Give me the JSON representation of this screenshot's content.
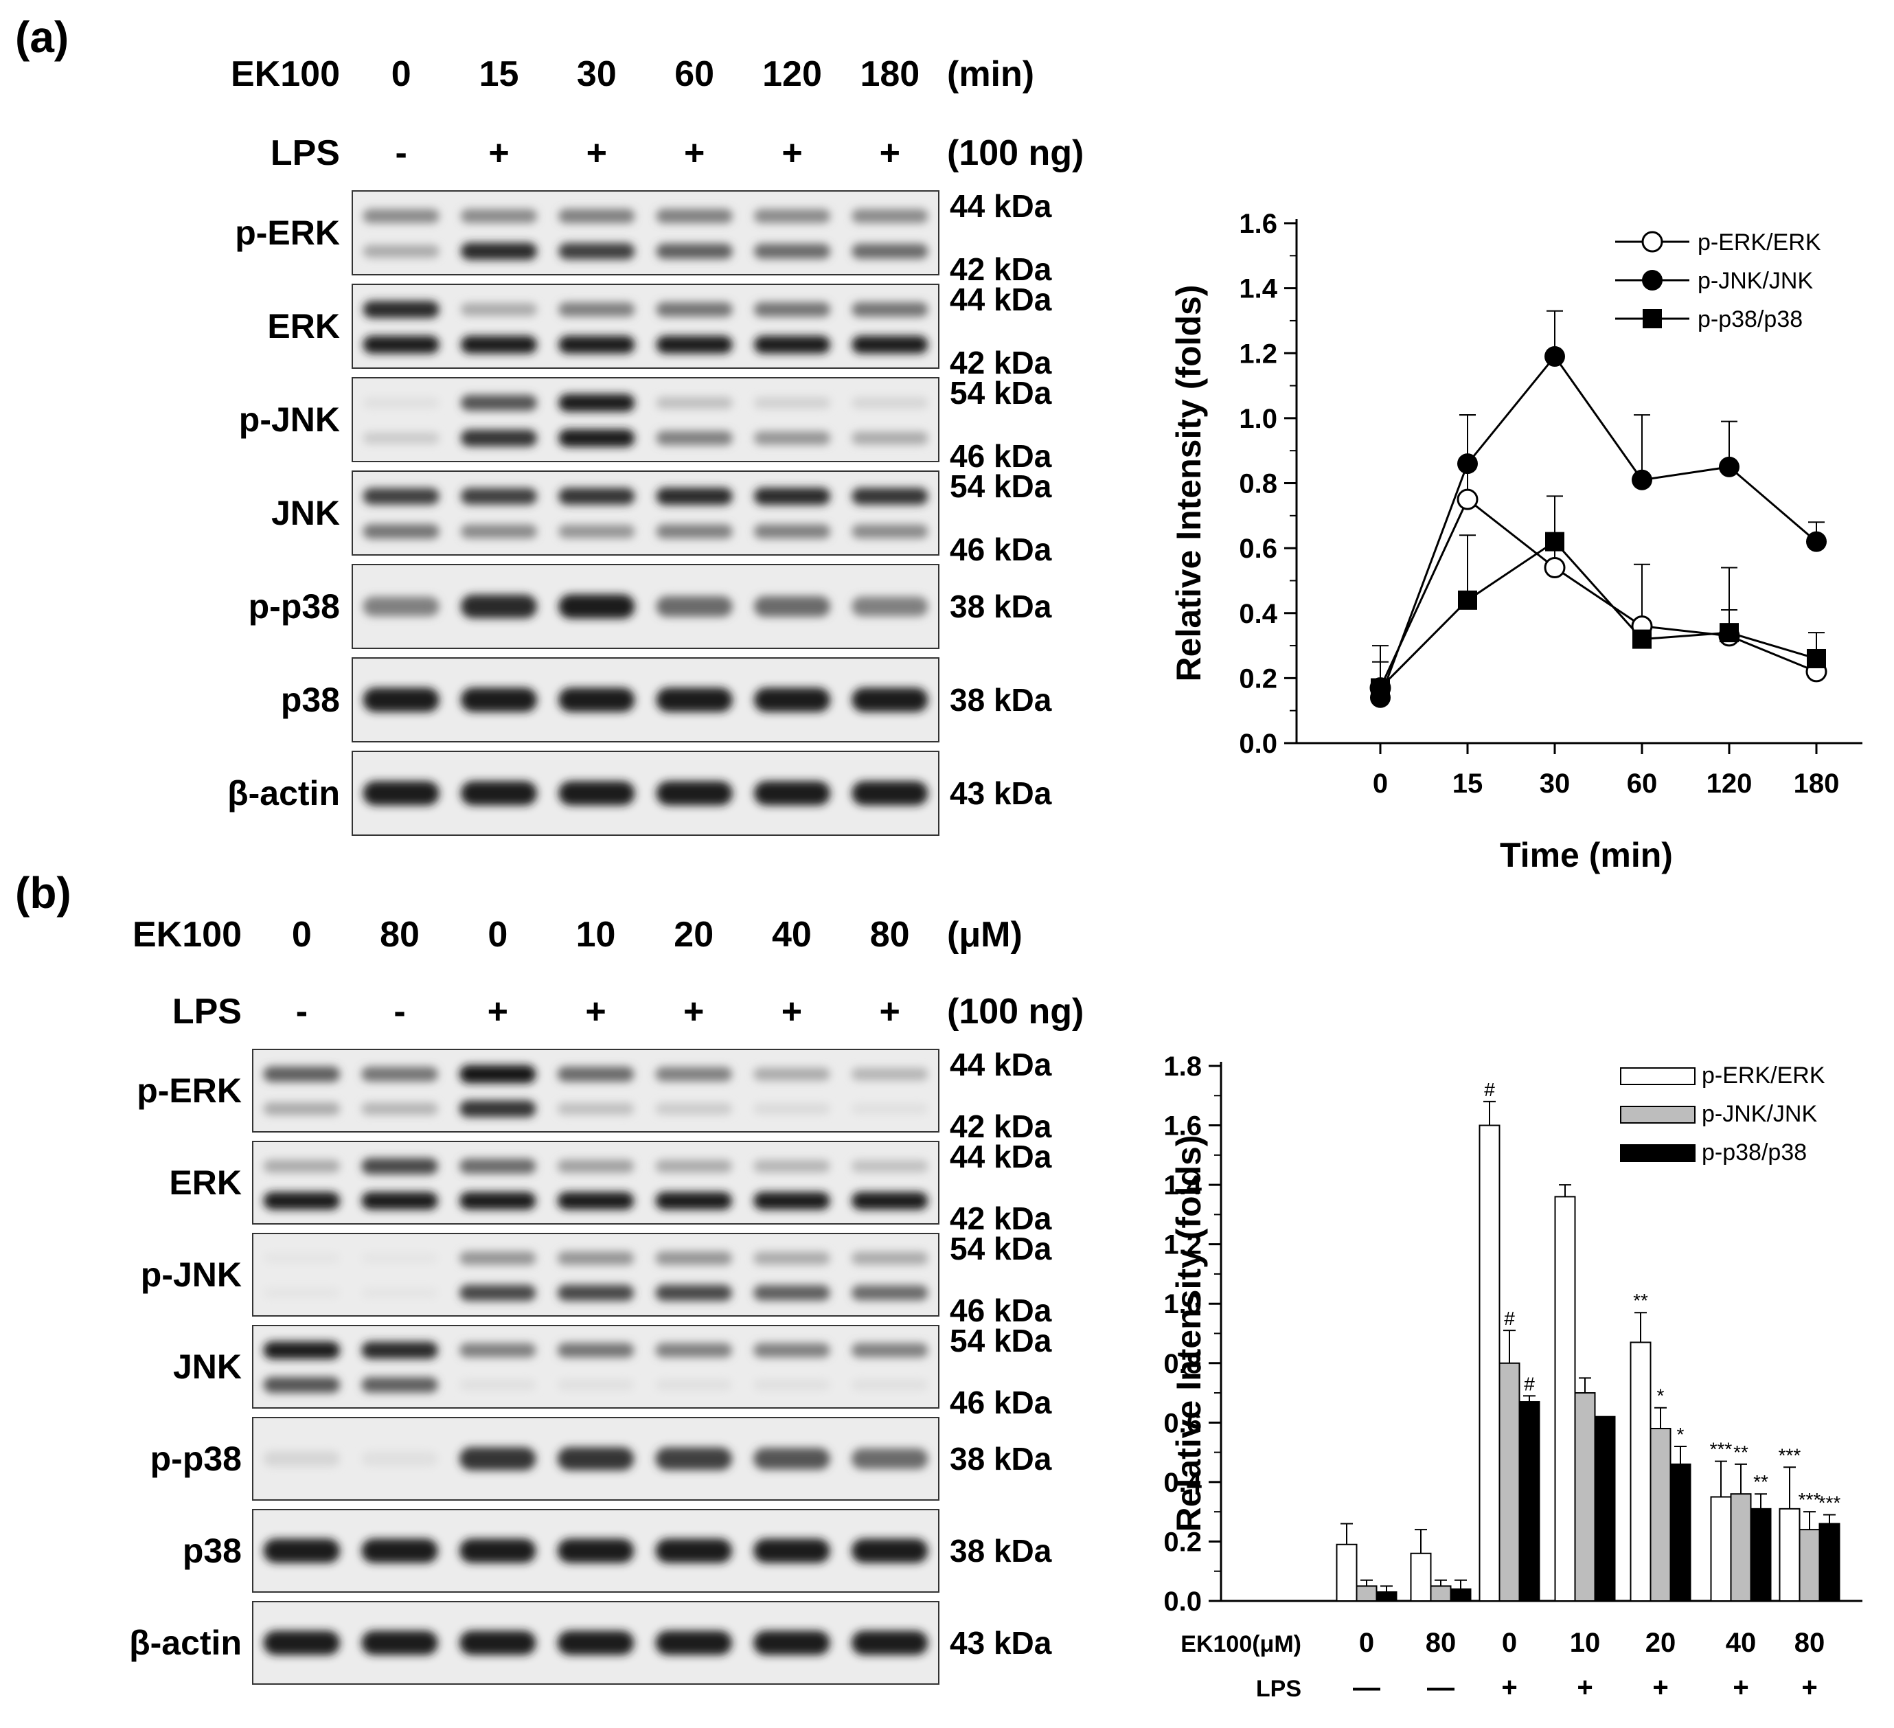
{
  "panel_a": {
    "label": "(a)",
    "blot": {
      "ek100_label": "EK100",
      "ek100_values": [
        "0",
        "15",
        "30",
        "60",
        "120",
        "180"
      ],
      "ek100_unit": "(min)",
      "lps_label": "LPS",
      "lps_values": [
        "-",
        "+",
        "+",
        "+",
        "+",
        "+"
      ],
      "lps_unit": "(100 ng)",
      "lps_intensity": [
        0,
        1,
        1,
        1,
        1,
        1
      ],
      "rows": [
        {
          "name": "p-ERK",
          "bands": [
            {
              "kda": "44 kDa",
              "i": [
                0.45,
                0.45,
                0.5,
                0.5,
                0.45,
                0.45
              ]
            },
            {
              "kda": "42 kDa",
              "i": [
                0.3,
                0.9,
                0.8,
                0.65,
                0.6,
                0.6
              ]
            }
          ]
        },
        {
          "name": "ERK",
          "bands": [
            {
              "kda": "44 kDa",
              "i": [
                0.9,
                0.3,
                0.5,
                0.55,
                0.55,
                0.55
              ]
            },
            {
              "kda": "42 kDa",
              "i": [
                0.95,
                0.95,
                0.95,
                0.95,
                0.95,
                0.95
              ]
            }
          ]
        },
        {
          "name": "p-JNK",
          "bands": [
            {
              "kda": "54 kDa",
              "i": [
                0.05,
                0.7,
                0.95,
                0.2,
                0.12,
                0.1
              ]
            },
            {
              "kda": "46 kDa",
              "i": [
                0.15,
                0.85,
                0.95,
                0.5,
                0.4,
                0.3
              ]
            }
          ]
        },
        {
          "name": "JNK",
          "bands": [
            {
              "kda": "54 kDa",
              "i": [
                0.8,
                0.8,
                0.85,
                0.9,
                0.9,
                0.85
              ]
            },
            {
              "kda": "46 kDa",
              "i": [
                0.55,
                0.45,
                0.4,
                0.5,
                0.5,
                0.45
              ]
            }
          ]
        },
        {
          "name": "p-p38",
          "bands": [
            {
              "kda": "38 kDa",
              "i": [
                0.5,
                0.9,
                0.95,
                0.6,
                0.6,
                0.5
              ]
            }
          ]
        },
        {
          "name": "p38",
          "bands": [
            {
              "kda": "38 kDa",
              "i": [
                0.95,
                0.95,
                0.95,
                0.95,
                0.95,
                0.95
              ]
            }
          ]
        },
        {
          "name": "β-actin",
          "bands": [
            {
              "kda": "43 kDa",
              "i": [
                0.95,
                0.95,
                0.95,
                0.95,
                0.95,
                0.95
              ]
            }
          ]
        }
      ]
    }
  },
  "panel_b": {
    "label": "(b)",
    "blot": {
      "ek100_label": "EK100",
      "ek100_values": [
        "0",
        "80",
        "0",
        "10",
        "20",
        "40",
        "80"
      ],
      "ek100_unit": "(μM)",
      "lps_label": "LPS",
      "lps_values": [
        "-",
        "-",
        "+",
        "+",
        "+",
        "+",
        "+"
      ],
      "lps_unit": "(100 ng)",
      "lps_intensity": [
        0,
        0,
        1,
        1,
        1,
        1,
        1
      ],
      "rows": [
        {
          "name": "p-ERK",
          "bands": [
            {
              "kda": "44 kDa",
              "i": [
                0.65,
                0.55,
                1.0,
                0.6,
                0.5,
                0.3,
                0.25
              ]
            },
            {
              "kda": "42 kDa",
              "i": [
                0.3,
                0.25,
                0.85,
                0.2,
                0.15,
                0.08,
                0.05
              ]
            }
          ]
        },
        {
          "name": "ERK",
          "bands": [
            {
              "kda": "44 kDa",
              "i": [
                0.3,
                0.75,
                0.6,
                0.35,
                0.3,
                0.25,
                0.2
              ]
            },
            {
              "kda": "42 kDa",
              "i": [
                0.95,
                0.95,
                0.95,
                0.95,
                0.95,
                0.95,
                0.95
              ]
            }
          ]
        },
        {
          "name": "p-JNK",
          "bands": [
            {
              "kda": "54 kDa",
              "i": [
                0.03,
                0.03,
                0.4,
                0.4,
                0.4,
                0.3,
                0.3
              ]
            },
            {
              "kda": "46 kDa",
              "i": [
                0.03,
                0.03,
                0.75,
                0.75,
                0.75,
                0.65,
                0.6
              ]
            }
          ]
        },
        {
          "name": "JNK",
          "bands": [
            {
              "kda": "54 kDa",
              "i": [
                0.95,
                0.9,
                0.5,
                0.55,
                0.5,
                0.5,
                0.5
              ]
            },
            {
              "kda": "46 kDa",
              "i": [
                0.7,
                0.65,
                0.05,
                0.05,
                0.05,
                0.05,
                0.05
              ]
            }
          ]
        },
        {
          "name": "p-p38",
          "bands": [
            {
              "kda": "38 kDa",
              "i": [
                0.1,
                0.05,
                0.85,
                0.85,
                0.8,
                0.7,
                0.6
              ]
            }
          ]
        },
        {
          "name": "p38",
          "bands": [
            {
              "kda": "38 kDa",
              "i": [
                0.95,
                0.95,
                0.95,
                0.95,
                0.95,
                0.95,
                0.95
              ]
            }
          ]
        },
        {
          "name": "β-actin",
          "bands": [
            {
              "kda": "43 kDa",
              "i": [
                0.95,
                0.95,
                0.95,
                0.95,
                0.95,
                0.95,
                0.95
              ]
            }
          ]
        }
      ]
    }
  },
  "chart_data": [
    {
      "type": "line",
      "x": [
        "0",
        "15",
        "30",
        "60",
        "120",
        "180"
      ],
      "xlabel": "Time (min)",
      "ylabel": "Relative Intensity (folds)",
      "ylim": [
        0,
        1.6
      ],
      "yticks": [
        "0.0",
        "0.2",
        "0.4",
        "0.6",
        "0.8",
        "1.0",
        "1.2",
        "1.4",
        "1.6"
      ],
      "grid": false,
      "legend_position": "top-right",
      "series": [
        {
          "name": "p-ERK/ERK",
          "marker": "open-circle",
          "values": [
            0.17,
            0.75,
            0.54,
            0.36,
            0.33,
            0.22
          ],
          "errors": [
            0.13,
            0.26,
            0.07,
            0.19,
            0.08,
            0.06
          ]
        },
        {
          "name": "p-JNK/JNK",
          "marker": "filled-circle",
          "values": [
            0.14,
            0.86,
            1.19,
            0.81,
            0.85,
            0.62
          ],
          "errors": [
            0.03,
            0.15,
            0.14,
            0.2,
            0.14,
            0.06
          ]
        },
        {
          "name": "p-p38/p38",
          "marker": "filled-square",
          "values": [
            0.17,
            0.44,
            0.62,
            0.32,
            0.34,
            0.26
          ],
          "errors": [
            0.08,
            0.2,
            0.14,
            0.03,
            0.2,
            0.08
          ]
        }
      ]
    },
    {
      "type": "bar",
      "categories": [
        "0",
        "80",
        "0",
        "10",
        "20",
        "40",
        "80"
      ],
      "xlabel": "EK100(μM)",
      "x_secondary_label": "LPS",
      "x_secondary": [
        "—",
        "—",
        "+",
        "+",
        "+",
        "+",
        "+"
      ],
      "ylabel": "Relative Intensity (folds)",
      "ylim": [
        0,
        1.8
      ],
      "yticks": [
        "0.0",
        "0.2",
        "0.4",
        "0.6",
        "0.8",
        "1.0",
        "1.2",
        "1.4",
        "1.6",
        "1.8"
      ],
      "grid": false,
      "legend_position": "top-right",
      "series": [
        {
          "name": "p-ERK/ERK",
          "color": "#ffffff",
          "values": [
            0.19,
            0.16,
            1.6,
            1.36,
            0.87,
            0.35,
            0.31
          ],
          "errors": [
            0.07,
            0.08,
            0.08,
            0.04,
            0.1,
            0.12,
            0.14
          ],
          "annotations": [
            "",
            "",
            "#",
            "",
            "**",
            "***",
            "***"
          ]
        },
        {
          "name": "p-JNK/JNK",
          "color": "#bdbdbd",
          "values": [
            0.05,
            0.05,
            0.8,
            0.7,
            0.58,
            0.36,
            0.24
          ],
          "errors": [
            0.02,
            0.02,
            0.11,
            0.05,
            0.07,
            0.1,
            0.06
          ],
          "annotations": [
            "",
            "",
            "#",
            "",
            "*",
            "**",
            "***"
          ]
        },
        {
          "name": "p-p38/p38",
          "color": "#000000",
          "values": [
            0.03,
            0.04,
            0.67,
            0.62,
            0.46,
            0.31,
            0.26
          ],
          "errors": [
            0.02,
            0.03,
            0.02,
            0.0,
            0.06,
            0.05,
            0.03
          ],
          "annotations": [
            "",
            "",
            "#",
            "",
            "*",
            "**",
            "***"
          ]
        }
      ]
    }
  ]
}
